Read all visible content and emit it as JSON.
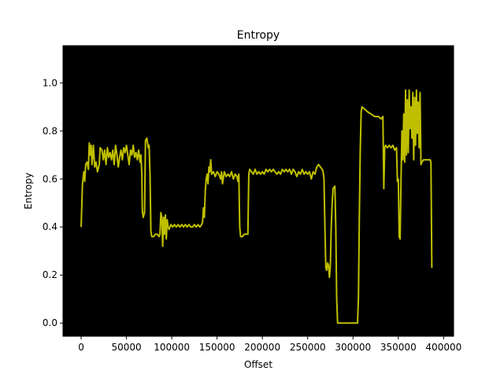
{
  "chart_data": {
    "type": "line",
    "title": "Entropy",
    "xlabel": "Offset",
    "ylabel": "Entropy",
    "xlim": [
      -20000,
      411000
    ],
    "ylim": [
      -0.055,
      1.155
    ],
    "xticks": [
      0,
      50000,
      100000,
      150000,
      200000,
      250000,
      300000,
      350000,
      400000
    ],
    "xtick_labels": [
      "0",
      "50000",
      "100000",
      "150000",
      "200000",
      "250000",
      "300000",
      "350000",
      "400000"
    ],
    "yticks": [
      0.0,
      0.2,
      0.4,
      0.6,
      0.8,
      1.0
    ],
    "ytick_labels": [
      "0.0",
      "0.2",
      "0.4",
      "0.6",
      "0.8",
      "1.0"
    ],
    "background_color": "#000000",
    "line_color": "#bfbf00",
    "grid": false,
    "series": [
      {
        "points": [
          [
            0,
            0.4
          ],
          [
            1500,
            0.58
          ],
          [
            3000,
            0.63
          ],
          [
            4000,
            0.59
          ],
          [
            5000,
            0.66
          ],
          [
            6500,
            0.67
          ],
          [
            8000,
            0.64
          ],
          [
            9000,
            0.75
          ],
          [
            10000,
            0.7
          ],
          [
            11000,
            0.74
          ],
          [
            12000,
            0.66
          ],
          [
            13500,
            0.74
          ],
          [
            15000,
            0.65
          ],
          [
            16500,
            0.67
          ],
          [
            18000,
            0.63
          ],
          [
            20000,
            0.66
          ],
          [
            21000,
            0.73
          ],
          [
            23000,
            0.72
          ],
          [
            24500,
            0.68
          ],
          [
            26000,
            0.72
          ],
          [
            27500,
            0.66
          ],
          [
            29000,
            0.73
          ],
          [
            30500,
            0.69
          ],
          [
            32000,
            0.71
          ],
          [
            33500,
            0.68
          ],
          [
            35000,
            0.72
          ],
          [
            36500,
            0.66
          ],
          [
            38000,
            0.74
          ],
          [
            39500,
            0.7
          ],
          [
            41000,
            0.65
          ],
          [
            42500,
            0.69
          ],
          [
            44000,
            0.72
          ],
          [
            45500,
            0.68
          ],
          [
            47000,
            0.73
          ],
          [
            48500,
            0.71
          ],
          [
            50000,
            0.74
          ],
          [
            51500,
            0.7
          ],
          [
            53000,
            0.66
          ],
          [
            54500,
            0.72
          ],
          [
            56000,
            0.7
          ],
          [
            57500,
            0.74
          ],
          [
            59000,
            0.69
          ],
          [
            60500,
            0.71
          ],
          [
            62000,
            0.68
          ],
          [
            63500,
            0.72
          ],
          [
            65000,
            0.67
          ],
          [
            66000,
            0.7
          ],
          [
            67000,
            0.62
          ],
          [
            67500,
            0.47
          ],
          [
            68500,
            0.44
          ],
          [
            70000,
            0.46
          ],
          [
            71000,
            0.76
          ],
          [
            72500,
            0.77
          ],
          [
            74000,
            0.73
          ],
          [
            75000,
            0.74
          ],
          [
            76000,
            0.62
          ],
          [
            77000,
            0.38
          ],
          [
            78000,
            0.36
          ],
          [
            80000,
            0.36
          ],
          [
            82000,
            0.37
          ],
          [
            84000,
            0.37
          ],
          [
            86000,
            0.36
          ],
          [
            87000,
            0.37
          ],
          [
            88000,
            0.46
          ],
          [
            89000,
            0.44
          ],
          [
            90000,
            0.32
          ],
          [
            91000,
            0.44
          ],
          [
            92000,
            0.37
          ],
          [
            93000,
            0.45
          ],
          [
            94000,
            0.35
          ],
          [
            95000,
            0.43
          ],
          [
            96000,
            0.4
          ],
          [
            97000,
            0.39
          ],
          [
            99000,
            0.41
          ],
          [
            101000,
            0.4
          ],
          [
            103000,
            0.41
          ],
          [
            105000,
            0.4
          ],
          [
            107000,
            0.41
          ],
          [
            109000,
            0.4
          ],
          [
            111000,
            0.41
          ],
          [
            113000,
            0.4
          ],
          [
            115000,
            0.41
          ],
          [
            117000,
            0.4
          ],
          [
            119000,
            0.41
          ],
          [
            121000,
            0.4
          ],
          [
            123000,
            0.4
          ],
          [
            125000,
            0.41
          ],
          [
            127000,
            0.4
          ],
          [
            129000,
            0.41
          ],
          [
            131000,
            0.4
          ],
          [
            133000,
            0.41
          ],
          [
            134000,
            0.42
          ],
          [
            135000,
            0.48
          ],
          [
            136000,
            0.44
          ],
          [
            137000,
            0.55
          ],
          [
            138000,
            0.6
          ],
          [
            139000,
            0.62
          ],
          [
            140000,
            0.58
          ],
          [
            141000,
            0.65
          ],
          [
            142000,
            0.63
          ],
          [
            143000,
            0.68
          ],
          [
            144000,
            0.62
          ],
          [
            146000,
            0.63
          ],
          [
            148000,
            0.61
          ],
          [
            150000,
            0.63
          ],
          [
            152000,
            0.62
          ],
          [
            154000,
            0.6
          ],
          [
            155000,
            0.63
          ],
          [
            156000,
            0.58
          ],
          [
            158000,
            0.63
          ],
          [
            160000,
            0.61
          ],
          [
            162000,
            0.62
          ],
          [
            164000,
            0.61
          ],
          [
            166000,
            0.63
          ],
          [
            168000,
            0.6
          ],
          [
            170000,
            0.62
          ],
          [
            172000,
            0.61
          ],
          [
            173000,
            0.59
          ],
          [
            174000,
            0.62
          ],
          [
            175000,
            0.4
          ],
          [
            176000,
            0.36
          ],
          [
            178000,
            0.36
          ],
          [
            180000,
            0.37
          ],
          [
            182000,
            0.37
          ],
          [
            184000,
            0.37
          ],
          [
            185000,
            0.62
          ],
          [
            186000,
            0.64
          ],
          [
            188000,
            0.63
          ],
          [
            190000,
            0.62
          ],
          [
            192000,
            0.64
          ],
          [
            194000,
            0.62
          ],
          [
            196000,
            0.63
          ],
          [
            198000,
            0.62
          ],
          [
            200000,
            0.63
          ],
          [
            202000,
            0.62
          ],
          [
            204000,
            0.64
          ],
          [
            206000,
            0.63
          ],
          [
            208000,
            0.64
          ],
          [
            210000,
            0.63
          ],
          [
            212000,
            0.64
          ],
          [
            214000,
            0.63
          ],
          [
            216000,
            0.62
          ],
          [
            218000,
            0.63
          ],
          [
            220000,
            0.62
          ],
          [
            222000,
            0.64
          ],
          [
            224000,
            0.63
          ],
          [
            226000,
            0.64
          ],
          [
            228000,
            0.63
          ],
          [
            230000,
            0.64
          ],
          [
            232000,
            0.62
          ],
          [
            234000,
            0.64
          ],
          [
            236000,
            0.63
          ],
          [
            238000,
            0.61
          ],
          [
            240000,
            0.63
          ],
          [
            242000,
            0.62
          ],
          [
            244000,
            0.64
          ],
          [
            246000,
            0.62
          ],
          [
            248000,
            0.63
          ],
          [
            250000,
            0.62
          ],
          [
            252000,
            0.63
          ],
          [
            254000,
            0.6
          ],
          [
            256000,
            0.63
          ],
          [
            258000,
            0.62
          ],
          [
            260000,
            0.65
          ],
          [
            262000,
            0.66
          ],
          [
            264000,
            0.65
          ],
          [
            266000,
            0.64
          ],
          [
            267000,
            0.63
          ],
          [
            268000,
            0.6
          ],
          [
            269000,
            0.4
          ],
          [
            270000,
            0.23
          ],
          [
            271000,
            0.22
          ],
          [
            272000,
            0.25
          ],
          [
            273000,
            0.24
          ],
          [
            274000,
            0.19
          ],
          [
            275000,
            0.24
          ],
          [
            276000,
            0.4
          ],
          [
            277000,
            0.5
          ],
          [
            278000,
            0.56
          ],
          [
            280000,
            0.57
          ],
          [
            281000,
            0.4
          ],
          [
            282000,
            0.1
          ],
          [
            283000,
            0.0
          ],
          [
            290000,
            0.0
          ],
          [
            300000,
            0.0
          ],
          [
            305000,
            0.0
          ],
          [
            306000,
            0.1
          ],
          [
            307000,
            0.45
          ],
          [
            308000,
            0.72
          ],
          [
            309000,
            0.88
          ],
          [
            310000,
            0.9
          ],
          [
            313000,
            0.89
          ],
          [
            316000,
            0.88
          ],
          [
            320000,
            0.87
          ],
          [
            324000,
            0.86
          ],
          [
            328000,
            0.86
          ],
          [
            331000,
            0.85
          ],
          [
            333000,
            0.86
          ],
          [
            334000,
            0.56
          ],
          [
            335000,
            0.73
          ],
          [
            336000,
            0.74
          ],
          [
            338000,
            0.73
          ],
          [
            340000,
            0.74
          ],
          [
            342000,
            0.73
          ],
          [
            344000,
            0.74
          ],
          [
            346000,
            0.72
          ],
          [
            348000,
            0.73
          ],
          [
            349000,
            0.59
          ],
          [
            350000,
            0.6
          ],
          [
            351000,
            0.36
          ],
          [
            352000,
            0.35
          ],
          [
            353000,
            0.6
          ],
          [
            354000,
            0.8
          ],
          [
            355000,
            0.68
          ],
          [
            356000,
            0.87
          ],
          [
            357000,
            0.67
          ],
          [
            358000,
            0.97
          ],
          [
            359000,
            0.7
          ],
          [
            360000,
            0.93
          ],
          [
            361000,
            0.71
          ],
          [
            362000,
            0.97
          ],
          [
            363000,
            0.81
          ],
          [
            364000,
            0.9
          ],
          [
            365000,
            0.77
          ],
          [
            366000,
            0.96
          ],
          [
            367000,
            0.68
          ],
          [
            368000,
            0.94
          ],
          [
            369000,
            0.74
          ],
          [
            370000,
            0.97
          ],
          [
            371000,
            0.79
          ],
          [
            372000,
            0.92
          ],
          [
            373000,
            0.73
          ],
          [
            374000,
            0.96
          ],
          [
            375000,
            0.66
          ],
          [
            376000,
            0.67
          ],
          [
            378000,
            0.68
          ],
          [
            380000,
            0.68
          ],
          [
            383000,
            0.68
          ],
          [
            385000,
            0.68
          ],
          [
            386000,
            0.67
          ],
          [
            387000,
            0.23
          ]
        ]
      }
    ]
  }
}
